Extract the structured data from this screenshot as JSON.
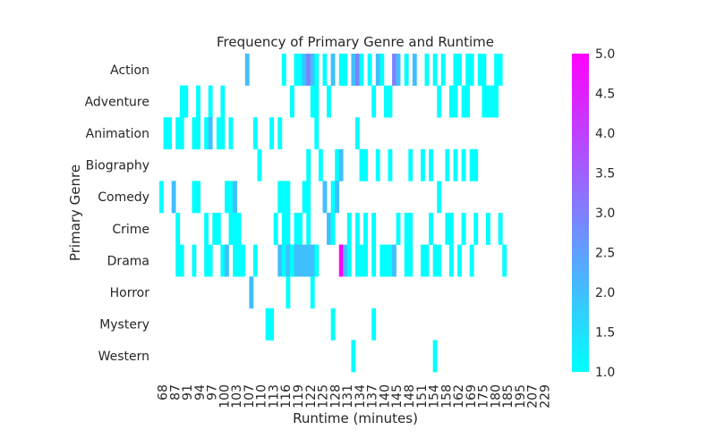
{
  "chart_data": {
    "type": "heatmap",
    "title": "Frequency of Primary Genre and Runtime",
    "xlabel": "Runtime (minutes)",
    "ylabel": "Primary Genre",
    "rows": [
      "Action",
      "Adventure",
      "Animation",
      "Biography",
      "Comedy",
      "Crime",
      "Drama",
      "Horror",
      "Mystery",
      "Western"
    ],
    "x_tick_labels": [
      "68",
      "87",
      "91",
      "94",
      "97",
      "100",
      "103",
      "107",
      "110",
      "113",
      "116",
      "119",
      "122",
      "125",
      "128",
      "131",
      "134",
      "137",
      "140",
      "145",
      "148",
      "151",
      "154",
      "158",
      "162",
      "169",
      "175",
      "180",
      "185",
      "195",
      "207",
      "229"
    ],
    "column_count": 96,
    "colorbar": {
      "min": 1.0,
      "max": 5.0,
      "ticks": [
        "1.0",
        "1.5",
        "2.0",
        "2.5",
        "3.0",
        "3.5",
        "4.0",
        "4.5",
        "5.0"
      ],
      "colormap": "cool",
      "color_low": "#00ffff",
      "color_high": "#ff00ff"
    },
    "grid": false,
    "cells": [
      [
        0,
        21,
        2
      ],
      [
        0,
        30,
        1
      ],
      [
        0,
        33,
        1
      ],
      [
        0,
        34,
        1
      ],
      [
        0,
        35,
        2
      ],
      [
        0,
        36,
        3
      ],
      [
        0,
        37,
        2
      ],
      [
        0,
        38,
        1
      ],
      [
        0,
        40,
        1
      ],
      [
        0,
        42,
        2
      ],
      [
        0,
        44,
        1
      ],
      [
        0,
        45,
        1
      ],
      [
        0,
        47,
        2
      ],
      [
        0,
        48,
        3
      ],
      [
        0,
        49,
        1
      ],
      [
        0,
        51,
        1
      ],
      [
        0,
        53,
        2
      ],
      [
        0,
        54,
        1
      ],
      [
        0,
        57,
        3
      ],
      [
        0,
        58,
        2
      ],
      [
        0,
        60,
        1
      ],
      [
        0,
        62,
        2
      ],
      [
        0,
        65,
        1
      ],
      [
        0,
        67,
        1
      ],
      [
        0,
        69,
        1
      ],
      [
        0,
        72,
        1
      ],
      [
        0,
        73,
        1
      ],
      [
        0,
        75,
        1
      ],
      [
        0,
        76,
        1
      ],
      [
        0,
        78,
        1
      ],
      [
        0,
        79,
        1
      ],
      [
        0,
        82,
        1
      ],
      [
        0,
        83,
        1
      ],
      [
        1,
        5,
        1
      ],
      [
        1,
        6,
        1
      ],
      [
        1,
        9,
        1
      ],
      [
        1,
        12,
        1
      ],
      [
        1,
        15,
        1
      ],
      [
        1,
        32,
        1
      ],
      [
        1,
        37,
        1
      ],
      [
        1,
        38,
        1
      ],
      [
        1,
        41,
        1
      ],
      [
        1,
        52,
        1
      ],
      [
        1,
        55,
        1
      ],
      [
        1,
        56,
        1
      ],
      [
        1,
        68,
        1
      ],
      [
        1,
        71,
        1
      ],
      [
        1,
        72,
        1
      ],
      [
        1,
        74,
        1
      ],
      [
        1,
        75,
        1
      ],
      [
        1,
        79,
        1
      ],
      [
        1,
        80,
        1
      ],
      [
        1,
        81,
        1
      ],
      [
        1,
        82,
        1
      ],
      [
        2,
        1,
        1
      ],
      [
        2,
        2,
        1
      ],
      [
        2,
        4,
        1
      ],
      [
        2,
        5,
        1
      ],
      [
        2,
        8,
        1
      ],
      [
        2,
        9,
        1
      ],
      [
        2,
        11,
        1
      ],
      [
        2,
        12,
        2
      ],
      [
        2,
        14,
        1
      ],
      [
        2,
        15,
        1
      ],
      [
        2,
        17,
        1
      ],
      [
        2,
        23,
        1
      ],
      [
        2,
        27,
        1
      ],
      [
        2,
        29,
        1
      ],
      [
        2,
        38,
        1
      ],
      [
        2,
        48,
        1
      ],
      [
        3,
        24,
        1
      ],
      [
        3,
        36,
        1
      ],
      [
        3,
        39,
        1
      ],
      [
        3,
        43,
        1
      ],
      [
        3,
        44,
        2
      ],
      [
        3,
        49,
        1
      ],
      [
        3,
        50,
        1
      ],
      [
        3,
        53,
        1
      ],
      [
        3,
        56,
        1
      ],
      [
        3,
        61,
        1
      ],
      [
        3,
        64,
        1
      ],
      [
        3,
        66,
        1
      ],
      [
        3,
        70,
        1
      ],
      [
        3,
        72,
        1
      ],
      [
        3,
        74,
        1
      ],
      [
        3,
        76,
        1
      ],
      [
        3,
        77,
        1
      ],
      [
        4,
        0,
        1
      ],
      [
        4,
        3,
        2
      ],
      [
        4,
        8,
        1
      ],
      [
        4,
        9,
        1
      ],
      [
        4,
        16,
        1
      ],
      [
        4,
        17,
        1
      ],
      [
        4,
        18,
        2
      ],
      [
        4,
        29,
        1
      ],
      [
        4,
        30,
        1
      ],
      [
        4,
        31,
        1
      ],
      [
        4,
        35,
        1
      ],
      [
        4,
        36,
        1
      ],
      [
        4,
        40,
        2
      ],
      [
        4,
        42,
        1
      ],
      [
        4,
        43,
        2
      ],
      [
        4,
        68,
        1
      ],
      [
        5,
        4,
        1
      ],
      [
        5,
        11,
        1
      ],
      [
        5,
        13,
        1
      ],
      [
        5,
        14,
        1
      ],
      [
        5,
        17,
        1
      ],
      [
        5,
        18,
        1
      ],
      [
        5,
        19,
        1
      ],
      [
        5,
        28,
        1
      ],
      [
        5,
        30,
        1
      ],
      [
        5,
        31,
        1
      ],
      [
        5,
        33,
        1
      ],
      [
        5,
        34,
        1
      ],
      [
        5,
        36,
        1
      ],
      [
        5,
        41,
        2
      ],
      [
        5,
        42,
        1
      ],
      [
        5,
        46,
        1
      ],
      [
        5,
        48,
        1
      ],
      [
        5,
        50,
        1
      ],
      [
        5,
        52,
        1
      ],
      [
        5,
        58,
        1
      ],
      [
        5,
        60,
        1
      ],
      [
        5,
        61,
        1
      ],
      [
        5,
        66,
        1
      ],
      [
        5,
        70,
        1
      ],
      [
        5,
        71,
        1
      ],
      [
        5,
        74,
        1
      ],
      [
        5,
        77,
        1
      ],
      [
        5,
        80,
        1
      ],
      [
        5,
        83,
        1
      ],
      [
        6,
        4,
        1
      ],
      [
        6,
        5,
        1
      ],
      [
        6,
        8,
        1
      ],
      [
        6,
        11,
        1
      ],
      [
        6,
        12,
        1
      ],
      [
        6,
        15,
        1
      ],
      [
        6,
        16,
        2
      ],
      [
        6,
        18,
        1
      ],
      [
        6,
        19,
        1
      ],
      [
        6,
        20,
        1
      ],
      [
        6,
        23,
        1
      ],
      [
        6,
        29,
        2
      ],
      [
        6,
        30,
        1
      ],
      [
        6,
        31,
        2
      ],
      [
        6,
        32,
        1
      ],
      [
        6,
        33,
        2
      ],
      [
        6,
        34,
        2
      ],
      [
        6,
        35,
        2
      ],
      [
        6,
        36,
        2
      ],
      [
        6,
        37,
        2
      ],
      [
        6,
        38,
        1
      ],
      [
        6,
        44,
        5
      ],
      [
        6,
        45,
        2
      ],
      [
        6,
        46,
        1
      ],
      [
        6,
        48,
        1
      ],
      [
        6,
        49,
        1
      ],
      [
        6,
        50,
        1
      ],
      [
        6,
        52,
        1
      ],
      [
        6,
        54,
        1
      ],
      [
        6,
        55,
        1
      ],
      [
        6,
        56,
        1
      ],
      [
        6,
        57,
        2
      ],
      [
        6,
        60,
        1
      ],
      [
        6,
        61,
        1
      ],
      [
        6,
        64,
        1
      ],
      [
        6,
        65,
        1
      ],
      [
        6,
        67,
        1
      ],
      [
        6,
        68,
        1
      ],
      [
        6,
        71,
        1
      ],
      [
        6,
        73,
        1
      ],
      [
        6,
        76,
        1
      ],
      [
        6,
        84,
        1
      ],
      [
        7,
        22,
        2
      ],
      [
        7,
        31,
        1
      ],
      [
        7,
        37,
        1
      ],
      [
        8,
        26,
        1
      ],
      [
        8,
        27,
        1
      ],
      [
        8,
        42,
        1
      ],
      [
        8,
        52,
        1
      ],
      [
        9,
        47,
        1
      ],
      [
        9,
        67,
        1
      ]
    ]
  }
}
